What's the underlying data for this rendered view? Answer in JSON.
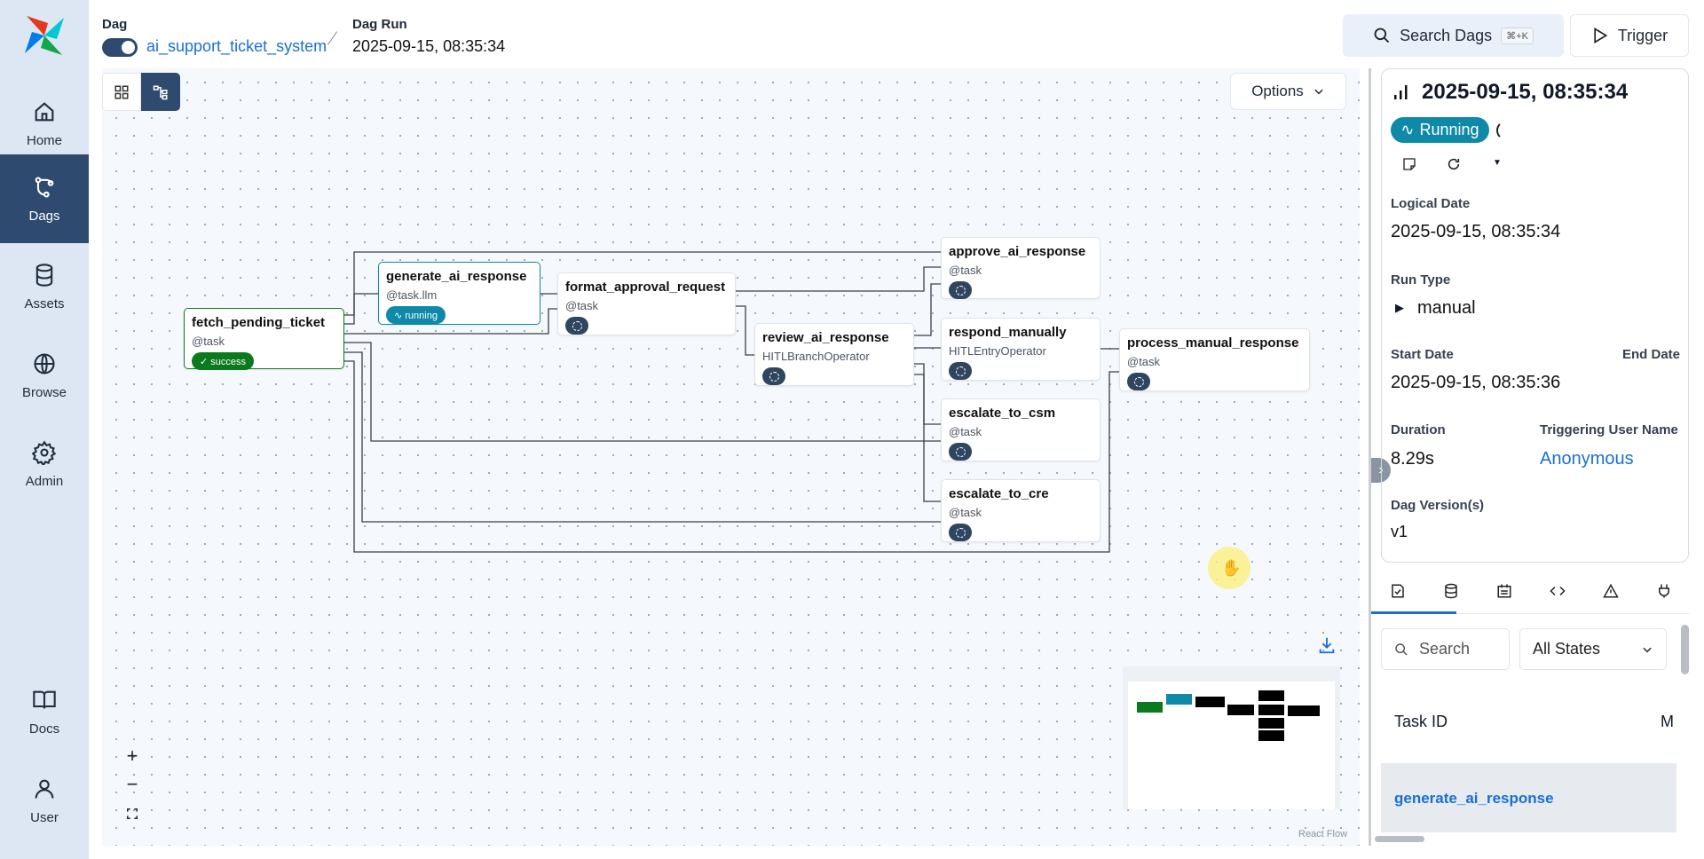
{
  "sidebar": {
    "items": [
      {
        "label": "Home",
        "icon": "home-icon"
      },
      {
        "label": "Dags",
        "icon": "dags-icon",
        "active": true
      },
      {
        "label": "Assets",
        "icon": "database-icon"
      },
      {
        "label": "Browse",
        "icon": "globe-icon"
      },
      {
        "label": "Admin",
        "icon": "gear-icon"
      },
      {
        "label": "Docs",
        "icon": "book-icon"
      },
      {
        "label": "User",
        "icon": "user-icon"
      }
    ]
  },
  "header": {
    "dag_label": "Dag",
    "dag_name": "ai_support_ticket_system",
    "dag_enabled": true,
    "run_label": "Dag Run",
    "run_date": "2025-09-15, 08:35:34",
    "search_label": "Search Dags",
    "search_shortcut": "⌘+K",
    "trigger_label": "Trigger"
  },
  "graph": {
    "options_label": "Options",
    "attribution": "React Flow",
    "nodes": [
      {
        "id": "fetch_pending_ticket",
        "operator": "@task",
        "state": "success"
      },
      {
        "id": "generate_ai_response",
        "operator": "@task.llm",
        "state": "running"
      },
      {
        "id": "format_approval_request",
        "operator": "@task",
        "state": "none"
      },
      {
        "id": "review_ai_response",
        "operator": "HITLBranchOperator",
        "state": "none"
      },
      {
        "id": "approve_ai_response",
        "operator": "@task",
        "state": "none"
      },
      {
        "id": "respond_manually",
        "operator": "HITLEntryOperator",
        "state": "none"
      },
      {
        "id": "escalate_to_csm",
        "operator": "@task",
        "state": "none"
      },
      {
        "id": "escalate_to_cre",
        "operator": "@task",
        "state": "none"
      },
      {
        "id": "process_manual_response",
        "operator": "@task",
        "state": "none"
      }
    ],
    "state_labels": {
      "success": "✓ success",
      "running": "∿ running"
    },
    "colors": {
      "success": "#0b7a1f",
      "running": "#0e89a8",
      "none": "#2f4560"
    }
  },
  "details": {
    "run_date": "2025-09-15, 08:35:34",
    "state": "Running",
    "state_color": "#0e89a8",
    "logical_date_label": "Logical Date",
    "logical_date": "2025-09-15, 08:35:34",
    "run_type_label": "Run Type",
    "run_type": "manual",
    "start_date_label": "Start Date",
    "start_date": "2025-09-15, 08:35:36",
    "end_date_label": "End Date",
    "duration_label": "Duration",
    "duration": "8.29s",
    "triggering_user_label": "Triggering User Name",
    "triggering_user": "Anonymous",
    "dag_version_label": "Dag Version(s)",
    "dag_version": "v1"
  },
  "tabs": [
    "task-instances-icon",
    "assets-icon",
    "calendar-icon",
    "code-icon",
    "warning-icon",
    "plug-icon"
  ],
  "task_list": {
    "search_placeholder": "Search",
    "state_filter": "All States",
    "columns": [
      "Task ID",
      "M"
    ],
    "rows": [
      {
        "task_id": "generate_ai_response"
      }
    ]
  }
}
